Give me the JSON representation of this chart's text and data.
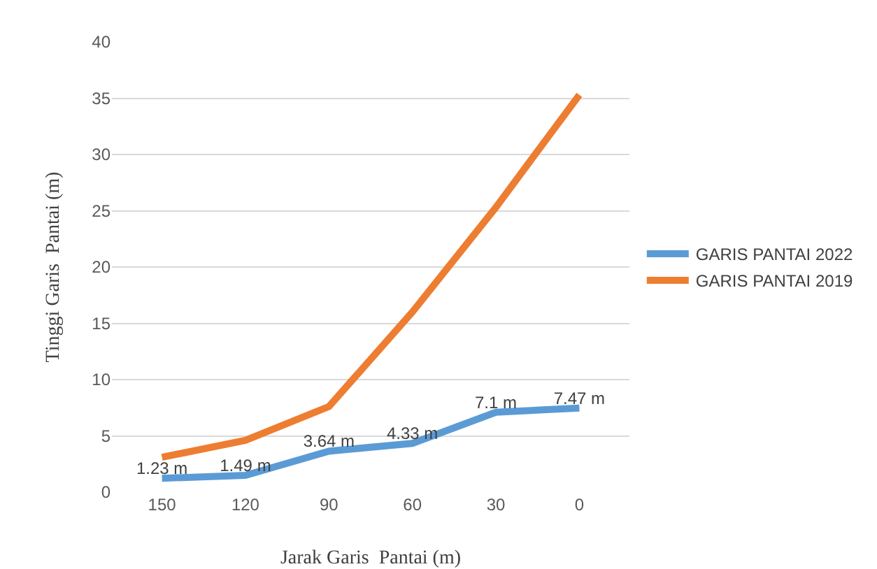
{
  "chart_data": {
    "type": "line",
    "xlabel": "Jarak Garis  Pantai (m)",
    "ylabel": "Tinggi Garis  Pantai (m)",
    "categories": [
      "150",
      "120",
      "90",
      "60",
      "30",
      "0"
    ],
    "series": [
      {
        "name": "GARIS PANTAI 2022",
        "color": "#5b9bd5",
        "values": [
          1.23,
          1.49,
          3.64,
          4.33,
          7.1,
          7.47
        ],
        "value_labels": [
          "1.23 m",
          "1.49 m",
          "3.64 m",
          "4.33 m",
          "7.1 m",
          "7.47 m"
        ]
      },
      {
        "name": "GARIS PANTAI 2019",
        "color": "#ed7d31",
        "values": [
          3.1,
          4.6,
          7.6,
          16,
          25.3,
          35.3
        ]
      }
    ],
    "ylim": [
      0,
      40
    ],
    "yticks": [
      0,
      5,
      10,
      15,
      20,
      25,
      30,
      35,
      40
    ],
    "grid": "y",
    "legend": "right",
    "marker": "none",
    "line_style": "solid"
  }
}
